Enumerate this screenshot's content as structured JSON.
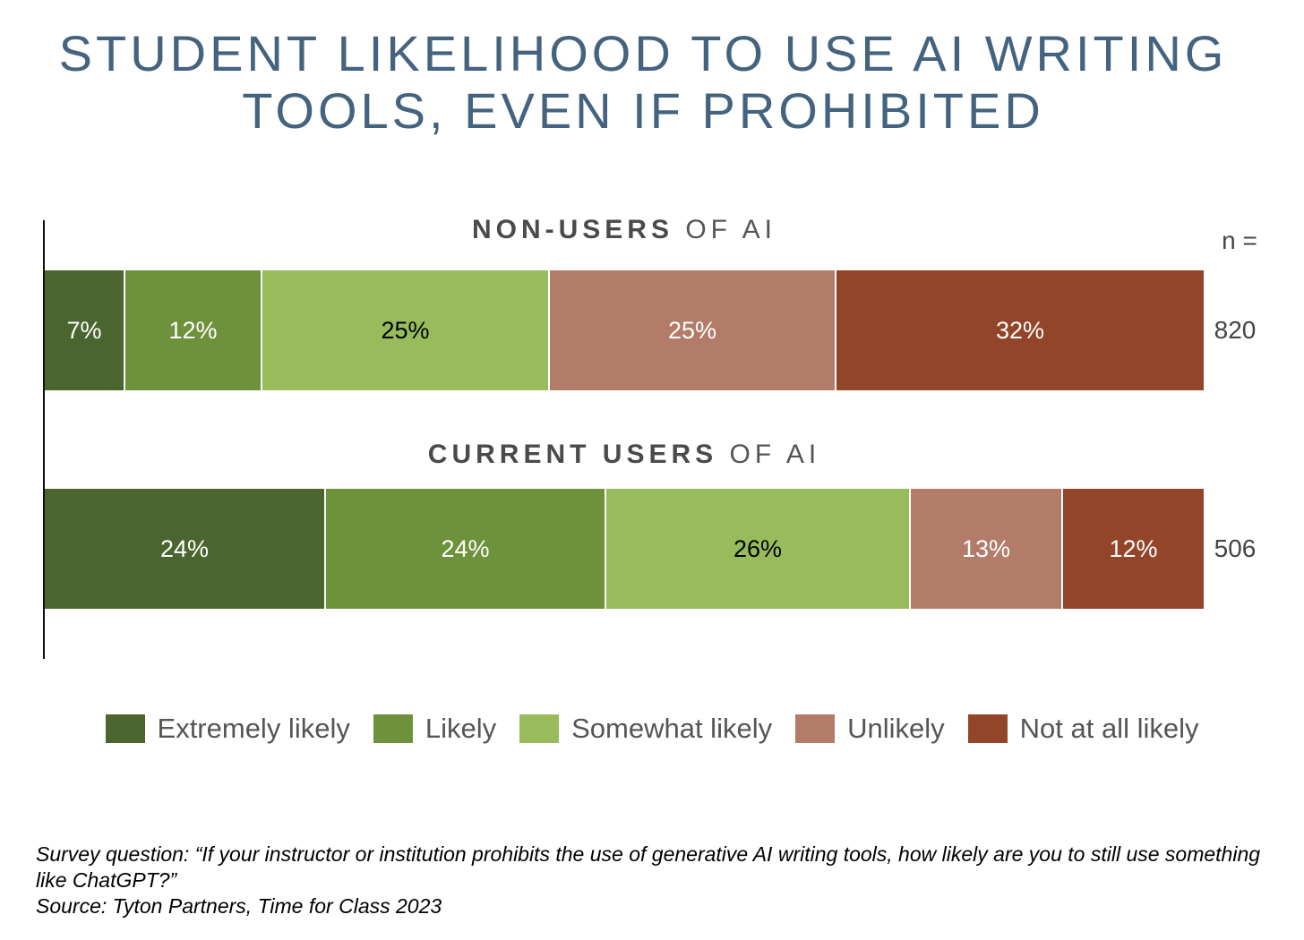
{
  "chart_data": {
    "type": "bar",
    "orientation": "horizontal",
    "stacked": true,
    "title_lines": [
      "STUDENT LIKELIHOOD TO USE AI WRITING",
      "TOOLS, EVEN IF PROHIBITED"
    ],
    "n_header": "n =",
    "legend_placement": "bottom",
    "grid": false,
    "categories": [
      "Extremely likely",
      "Likely",
      "Somewhat likely",
      "Unlikely",
      "Not at all likely"
    ],
    "colors": [
      "#4a652e",
      "#6e913c",
      "#98bb5c",
      "#b37c69",
      "#924529"
    ],
    "label_colors": [
      "#ffffff",
      "#ffffff",
      "#000000",
      "#ffffff",
      "#ffffff"
    ],
    "groups": [
      {
        "label_bold": "NON-USERS",
        "label_rest": " OF AI",
        "values": [
          7,
          12,
          25,
          25,
          32
        ],
        "labels": [
          "7%",
          "12%",
          "25%",
          "25%",
          "32%"
        ],
        "n": "820"
      },
      {
        "label_bold": "CURRENT USERS",
        "label_rest": " OF AI",
        "values": [
          24,
          24,
          26,
          13,
          12
        ],
        "labels": [
          "24%",
          "24%",
          "26%",
          "13%",
          "12%"
        ],
        "n": "506"
      }
    ],
    "footnote": {
      "line1": "Survey question: “If your instructor or institution prohibits the use of generative AI writing tools, how likely are you to still use something like ChatGPT?”",
      "line2": "Source: Tyton Partners, Time for Class 2023"
    }
  }
}
